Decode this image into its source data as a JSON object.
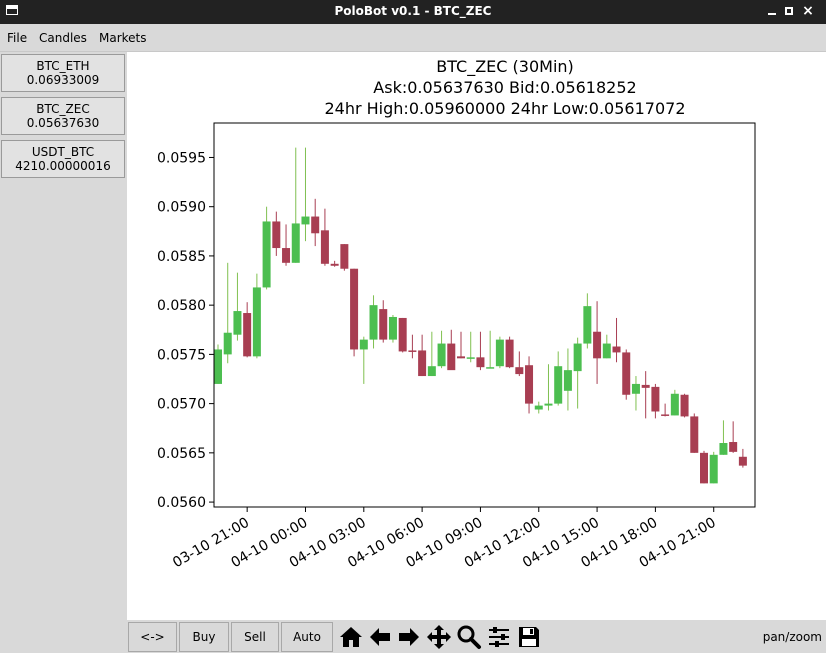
{
  "window": {
    "title": "PoloBot v0.1 - BTC_ZEC",
    "close_glyph": "×"
  },
  "menu": [
    "File",
    "Candles",
    "Markets"
  ],
  "markets": [
    {
      "name": "BTC_ETH",
      "price": "0.06933009"
    },
    {
      "name": "BTC_ZEC",
      "price": "0.05637630"
    },
    {
      "name": "USDT_BTC",
      "price": "4210.00000016"
    }
  ],
  "toolbar": {
    "buttons": [
      "<->",
      "Buy",
      "Sell",
      "Auto"
    ],
    "icons": [
      "home-icon",
      "back-arrow-icon",
      "forward-arrow-icon",
      "pan-icon",
      "zoom-icon",
      "subplots-icon",
      "save-icon"
    ],
    "status": "pan/zoom"
  },
  "colors": {
    "up": "#4cbe50",
    "down": "#a83e52",
    "wick_up": "#80c050",
    "wick_down": "#a83e52"
  },
  "chart_data": {
    "type": "candlestick",
    "title_lines": [
      "BTC_ZEC (30Min)",
      "Ask:0.05637630 Bid:0.05618252",
      "24hr High:0.05960000 24hr Low:0.05617072"
    ],
    "ylim": [
      0.05595,
      0.05985
    ],
    "yticks": [
      "0.0560",
      "0.0565",
      "0.0570",
      "0.0575",
      "0.0580",
      "0.0585",
      "0.0590",
      "0.0595"
    ],
    "xticks": [
      "03-10 21:00",
      "04-10 00:00",
      "04-10 03:00",
      "04-10 06:00",
      "04-10 09:00",
      "04-10 12:00",
      "04-10 15:00",
      "04-10 18:00",
      "04-10 21:00"
    ],
    "interval_minutes": 30,
    "candles": [
      {
        "o": 0.0572,
        "h": 0.0576,
        "l": 0.0572,
        "c": 0.05755
      },
      {
        "o": 0.0575,
        "h": 0.05843,
        "l": 0.05741,
        "c": 0.05772
      },
      {
        "o": 0.0577,
        "h": 0.05833,
        "l": 0.05764,
        "c": 0.05794
      },
      {
        "o": 0.05792,
        "h": 0.05803,
        "l": 0.05747,
        "c": 0.05748
      },
      {
        "o": 0.05748,
        "h": 0.05832,
        "l": 0.05746,
        "c": 0.05818
      },
      {
        "o": 0.05818,
        "h": 0.059,
        "l": 0.05816,
        "c": 0.05885
      },
      {
        "o": 0.05885,
        "h": 0.05895,
        "l": 0.0585,
        "c": 0.05858
      },
      {
        "o": 0.05858,
        "h": 0.05882,
        "l": 0.0584,
        "c": 0.05843
      },
      {
        "o": 0.05843,
        "h": 0.0596,
        "l": 0.05843,
        "c": 0.05883
      },
      {
        "o": 0.05882,
        "h": 0.0596,
        "l": 0.05865,
        "c": 0.0589
      },
      {
        "o": 0.0589,
        "h": 0.05908,
        "l": 0.0586,
        "c": 0.05873
      },
      {
        "o": 0.05876,
        "h": 0.05898,
        "l": 0.0584,
        "c": 0.05842
      },
      {
        "o": 0.05842,
        "h": 0.05845,
        "l": 0.05839,
        "c": 0.0584
      },
      {
        "o": 0.05862,
        "h": 0.05862,
        "l": 0.05835,
        "c": 0.05837
      },
      {
        "o": 0.05837,
        "h": 0.05837,
        "l": 0.05748,
        "c": 0.05755
      },
      {
        "o": 0.05755,
        "h": 0.05768,
        "l": 0.0572,
        "c": 0.05765
      },
      {
        "o": 0.05765,
        "h": 0.0581,
        "l": 0.05756,
        "c": 0.058
      },
      {
        "o": 0.05796,
        "h": 0.05805,
        "l": 0.05762,
        "c": 0.05765
      },
      {
        "o": 0.05765,
        "h": 0.0579,
        "l": 0.05762,
        "c": 0.05788
      },
      {
        "o": 0.05787,
        "h": 0.05787,
        "l": 0.05752,
        "c": 0.05753
      },
      {
        "o": 0.05754,
        "h": 0.0577,
        "l": 0.05746,
        "c": 0.05753
      },
      {
        "o": 0.05754,
        "h": 0.0577,
        "l": 0.05728,
        "c": 0.05728
      },
      {
        "o": 0.05728,
        "h": 0.05773,
        "l": 0.05728,
        "c": 0.05738
      },
      {
        "o": 0.05738,
        "h": 0.05774,
        "l": 0.05736,
        "c": 0.05761
      },
      {
        "o": 0.05761,
        "h": 0.05775,
        "l": 0.05736,
        "c": 0.05734
      },
      {
        "o": 0.05748,
        "h": 0.05773,
        "l": 0.05746,
        "c": 0.05746
      },
      {
        "o": 0.05747,
        "h": 0.05773,
        "l": 0.05742,
        "c": 0.05747
      },
      {
        "o": 0.05747,
        "h": 0.05773,
        "l": 0.05734,
        "c": 0.05737
      },
      {
        "o": 0.05736,
        "h": 0.05774,
        "l": 0.05736,
        "c": 0.05737
      },
      {
        "o": 0.05738,
        "h": 0.05768,
        "l": 0.05736,
        "c": 0.05765
      },
      {
        "o": 0.05765,
        "h": 0.05768,
        "l": 0.05736,
        "c": 0.05737
      },
      {
        "o": 0.05737,
        "h": 0.05753,
        "l": 0.05728,
        "c": 0.0573
      },
      {
        "o": 0.05739,
        "h": 0.05748,
        "l": 0.0569,
        "c": 0.057
      },
      {
        "o": 0.05694,
        "h": 0.05702,
        "l": 0.0569,
        "c": 0.05698
      },
      {
        "o": 0.05698,
        "h": 0.0574,
        "l": 0.05693,
        "c": 0.057
      },
      {
        "o": 0.057,
        "h": 0.05753,
        "l": 0.05698,
        "c": 0.05738
      },
      {
        "o": 0.05713,
        "h": 0.05756,
        "l": 0.05693,
        "c": 0.05734
      },
      {
        "o": 0.05733,
        "h": 0.05767,
        "l": 0.05695,
        "c": 0.05761
      },
      {
        "o": 0.05761,
        "h": 0.05812,
        "l": 0.05756,
        "c": 0.05799
      },
      {
        "o": 0.05773,
        "h": 0.05804,
        "l": 0.0572,
        "c": 0.05746
      },
      {
        "o": 0.05746,
        "h": 0.0577,
        "l": 0.05746,
        "c": 0.05761
      },
      {
        "o": 0.05758,
        "h": 0.05787,
        "l": 0.05742,
        "c": 0.05752
      },
      {
        "o": 0.05752,
        "h": 0.05755,
        "l": 0.05704,
        "c": 0.05709
      },
      {
        "o": 0.0571,
        "h": 0.05728,
        "l": 0.05693,
        "c": 0.0572
      },
      {
        "o": 0.05719,
        "h": 0.05733,
        "l": 0.05685,
        "c": 0.05716
      },
      {
        "o": 0.05717,
        "h": 0.0572,
        "l": 0.05685,
        "c": 0.05692
      },
      {
        "o": 0.05689,
        "h": 0.057,
        "l": 0.05687,
        "c": 0.05688
      },
      {
        "o": 0.05688,
        "h": 0.05714,
        "l": 0.05688,
        "c": 0.0571
      },
      {
        "o": 0.05709,
        "h": 0.0571,
        "l": 0.05686,
        "c": 0.05687
      },
      {
        "o": 0.05687,
        "h": 0.0569,
        "l": 0.0565,
        "c": 0.0565
      },
      {
        "o": 0.0565,
        "h": 0.05652,
        "l": 0.05619,
        "c": 0.05619
      },
      {
        "o": 0.05619,
        "h": 0.05651,
        "l": 0.05619,
        "c": 0.05648
      },
      {
        "o": 0.05648,
        "h": 0.05683,
        "l": 0.05648,
        "c": 0.0566
      },
      {
        "o": 0.05661,
        "h": 0.05682,
        "l": 0.0565,
        "c": 0.05651
      },
      {
        "o": 0.05646,
        "h": 0.05654,
        "l": 0.05635,
        "c": 0.05637
      }
    ]
  }
}
